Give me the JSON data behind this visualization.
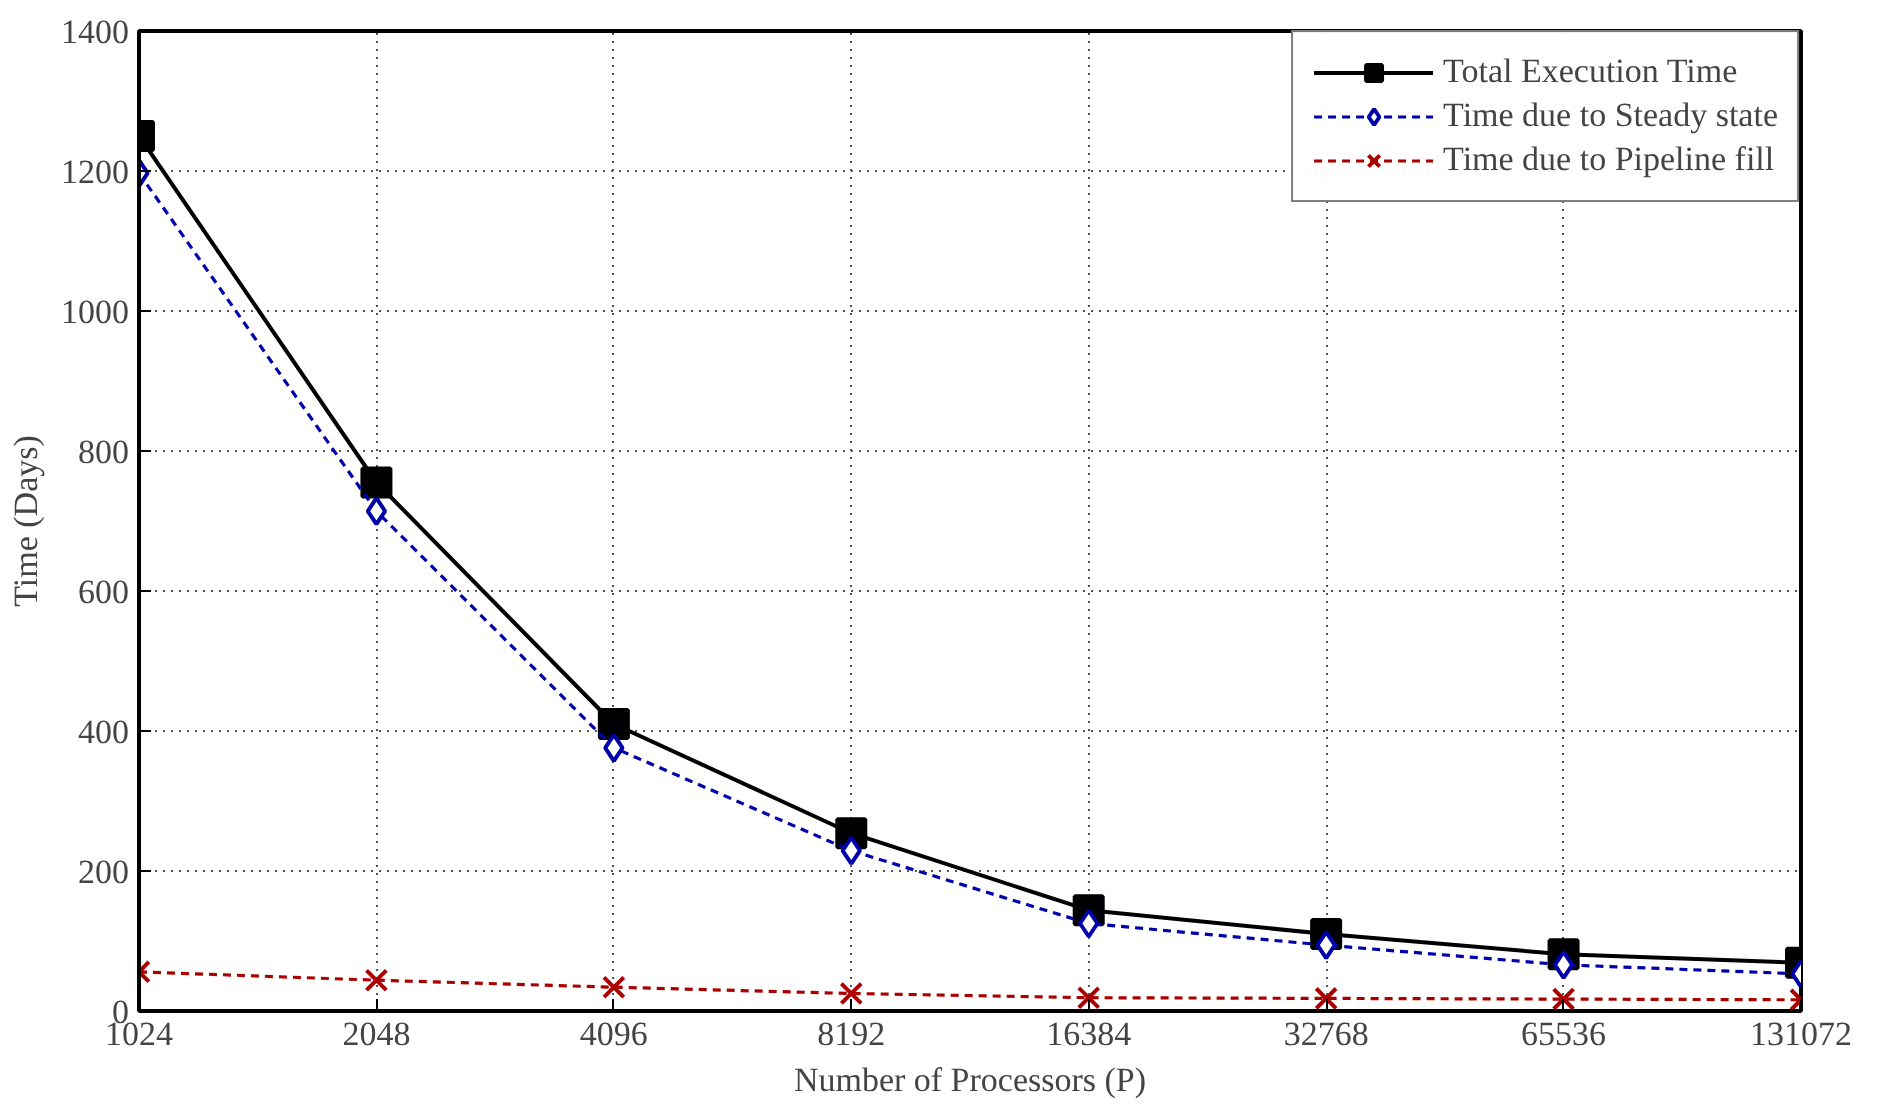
{
  "chart_data": {
    "type": "line",
    "xlabel": "Number of Processors (P)",
    "ylabel": "Time (Days)",
    "categories": [
      "1024",
      "2048",
      "4096",
      "8192",
      "16384",
      "32768",
      "65536",
      "131072"
    ],
    "series": [
      {
        "name": "Total Execution Time",
        "color": "#000000",
        "marker": "square",
        "line_style": "solid",
        "values": [
          1250,
          755,
          410,
          254,
          144,
          110,
          81,
          69
        ]
      },
      {
        "name": "Time due to Steady state",
        "color": "#0000aa",
        "marker": "diamond",
        "line_style": "dashed",
        "values": [
          1197,
          714,
          376,
          229,
          125,
          94,
          66,
          53
        ]
      },
      {
        "name": "Time due to Pipeline fill",
        "color": "#aa0000",
        "marker": "cross",
        "line_style": "dashed",
        "values": [
          56,
          44,
          34,
          25,
          19,
          18,
          17,
          16
        ]
      }
    ],
    "ylim": [
      0,
      1400
    ],
    "yticks": [
      0,
      200,
      400,
      600,
      800,
      1000,
      1200,
      1400
    ],
    "grid": true,
    "legend": "top right"
  }
}
